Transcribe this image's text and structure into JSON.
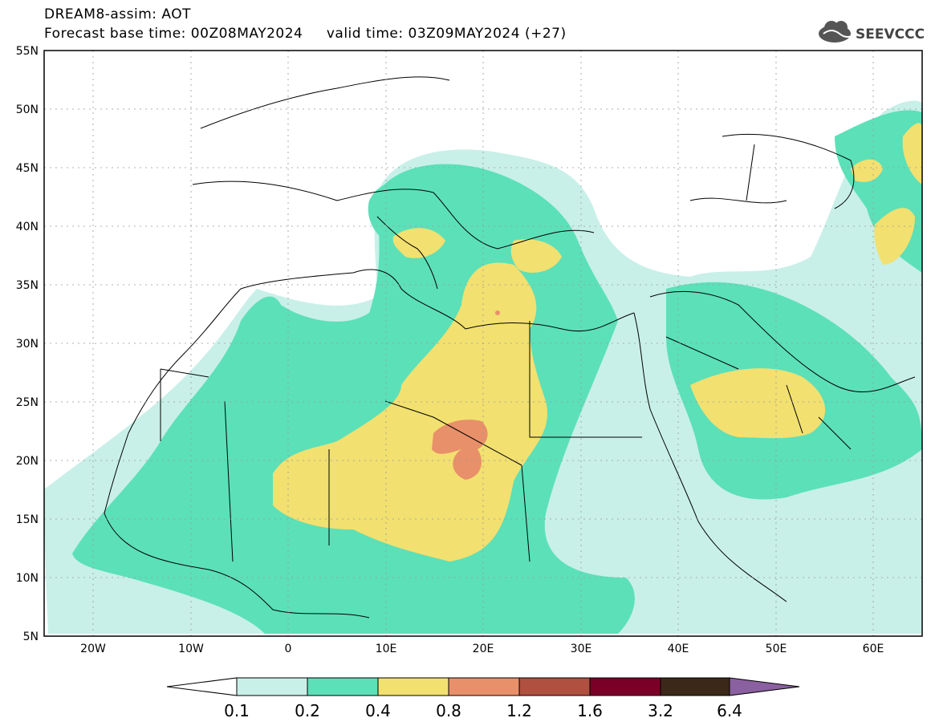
{
  "header": {
    "line1": "DREAM8-assim: AOT",
    "line2": "Forecast base time: 00Z08MAY2024     valid time: 03Z09MAY2024 (+27)",
    "logo_text": "SEEVCCC"
  },
  "axes": {
    "lat_labels": [
      "55N",
      "50N",
      "45N",
      "40N",
      "35N",
      "30N",
      "25N",
      "20N",
      "15N",
      "10N",
      "5N"
    ],
    "lon_labels": [
      "20W",
      "10W",
      "0",
      "10E",
      "20E",
      "30E",
      "40E",
      "50E",
      "60E"
    ]
  },
  "colorbar": {
    "labels": [
      "0.1",
      "0.2",
      "0.4",
      "0.8",
      "1.2",
      "1.6",
      "3.2",
      "6.4"
    ],
    "colors": [
      "#ffffff",
      "#c8f0e8",
      "#5ce0b8",
      "#f2e070",
      "#e8906a",
      "#b05040",
      "#7a0028",
      "#3c2818",
      "#8a60a0"
    ]
  },
  "colors": {
    "c1": "#c8f0e8",
    "c2": "#5ce0b8",
    "c3": "#f2e070",
    "c4": "#e8906a"
  }
}
